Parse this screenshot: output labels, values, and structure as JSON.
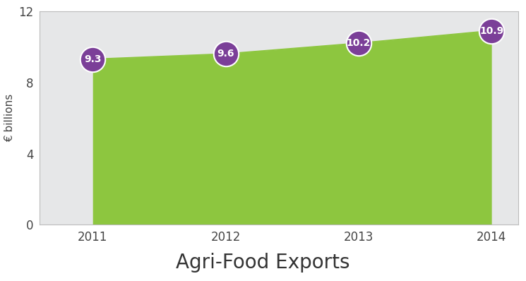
{
  "chart_data": {
    "type": "area",
    "title": "Agri-Food Exports",
    "y_label": "€ billions",
    "x": [
      2011,
      2012,
      2013,
      2014
    ],
    "values": [
      9.3,
      9.6,
      10.2,
      10.9
    ],
    "color": "#8dc63f",
    "marker_color": "#7b3f98",
    "data_labels": true,
    "xlim": [
      2010.6,
      2014.2
    ],
    "xticks": [
      2011,
      2012,
      2013,
      2014
    ],
    "ylim": [
      0,
      12
    ],
    "yticks": [
      0,
      4,
      8,
      12
    ],
    "grid": false
  }
}
